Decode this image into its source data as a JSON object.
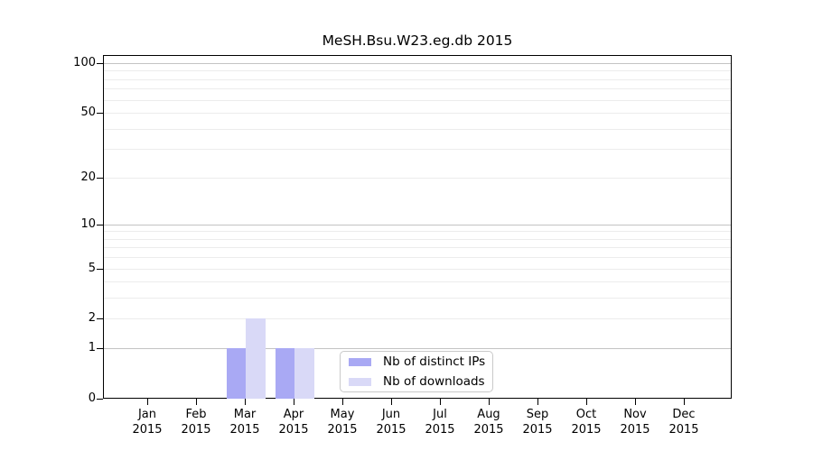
{
  "chart_data": {
    "type": "bar",
    "title": "MeSH.Bsu.W23.eg.db 2015",
    "categories": [
      "Jan",
      "Feb",
      "Mar",
      "Apr",
      "May",
      "Jun",
      "Jul",
      "Aug",
      "Sep",
      "Oct",
      "Nov",
      "Dec"
    ],
    "year_label": "2015",
    "series": [
      {
        "name": "Nb of distinct IPs",
        "color": "#a9a9f4",
        "values": [
          0,
          0,
          1,
          1,
          0,
          0,
          0,
          0,
          0,
          0,
          0,
          0
        ]
      },
      {
        "name": "Nb of downloads",
        "color": "#d9d9f7",
        "values": [
          0,
          0,
          2,
          1,
          0,
          0,
          0,
          0,
          0,
          0,
          0,
          0
        ]
      }
    ],
    "y_scale": "log1p",
    "y_ticks": [
      0,
      1,
      2,
      5,
      10,
      20,
      50,
      100
    ],
    "y_gridlines_major": [
      1,
      10,
      100
    ],
    "y_gridlines_minor": [
      2,
      3,
      4,
      5,
      6,
      7,
      8,
      9,
      20,
      30,
      40,
      50,
      60,
      70,
      80,
      90
    ],
    "ylim": [
      0,
      110
    ],
    "xlabel": "",
    "ylabel": "",
    "grid": "horizontal",
    "legend_position": "inside lower center"
  },
  "colors": {
    "grid_major": "#c3c3c3",
    "grid_minor": "#ececec",
    "axis": "#000000",
    "text": "#000000",
    "background": "#ffffff"
  }
}
